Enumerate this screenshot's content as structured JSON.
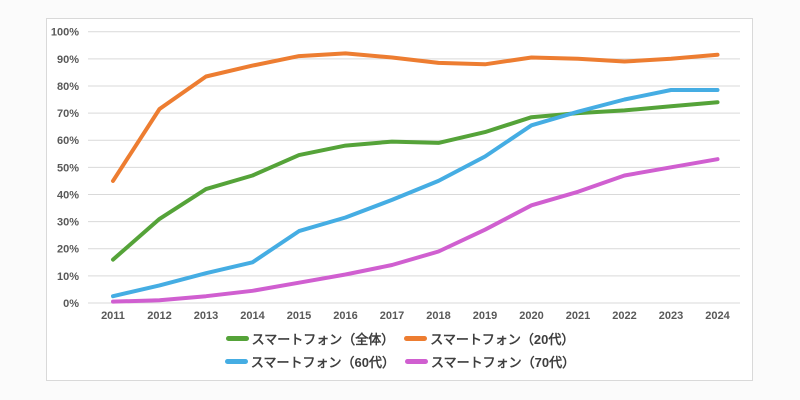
{
  "chart_data": {
    "type": "line",
    "title": "",
    "categories": [
      "2011",
      "2012",
      "2013",
      "2014",
      "2015",
      "2016",
      "2017",
      "2018",
      "2019",
      "2020",
      "2021",
      "2022",
      "2023",
      "2024"
    ],
    "series": [
      {
        "name": "スマートフォン（全体）",
        "color": "#55a339",
        "values": [
          16,
          31,
          42,
          47,
          54.5,
          58,
          59.5,
          59,
          63,
          68.5,
          70,
          71,
          72.5,
          74
        ]
      },
      {
        "name": "スマートフォン（20代）",
        "color": "#ed7d31",
        "values": [
          45,
          71.5,
          83.5,
          87.5,
          91,
          92,
          90.5,
          88.5,
          88,
          90.5,
          90,
          89,
          90,
          91.5
        ]
      },
      {
        "name": "スマートフォン（60代）",
        "color": "#45ade3",
        "values": [
          2.5,
          6.5,
          11,
          15,
          26.5,
          31.5,
          38,
          45,
          54,
          65.5,
          70.5,
          75,
          78.5,
          78.5
        ]
      },
      {
        "name": "スマートフォン（70代）",
        "color": "#d05fd0",
        "values": [
          0.5,
          1,
          2.5,
          4.5,
          7.5,
          10.5,
          14,
          19,
          27,
          36,
          41,
          47,
          50,
          53
        ]
      }
    ],
    "y_ticks": [
      "0%",
      "10%",
      "20%",
      "30%",
      "40%",
      "50%",
      "60%",
      "70%",
      "80%",
      "90%",
      "100%"
    ],
    "ylim": [
      0,
      100
    ],
    "grid": "horizontal",
    "legend_position": "bottom",
    "axis_label_color": "#595959",
    "gridline_color": "#d9d9d9"
  }
}
